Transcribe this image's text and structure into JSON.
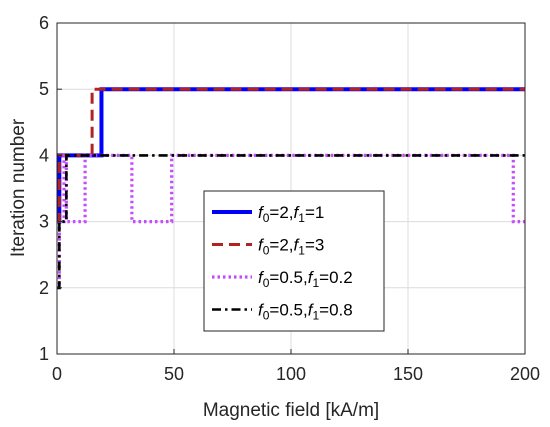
{
  "chart_data": {
    "type": "line",
    "title": "",
    "xlabel": "Magnetic field [kA/m]",
    "ylabel": "Iteration number",
    "xlim": [
      0,
      200
    ],
    "ylim": [
      1,
      6
    ],
    "xticks": [
      "0",
      "50",
      "100",
      "150",
      "200"
    ],
    "yticks": [
      "1",
      "2",
      "3",
      "4",
      "5",
      "6"
    ],
    "grid": true,
    "legend_position": "inside-center",
    "series": [
      {
        "name_parts": {
          "p1": "f",
          "s1": "0",
          "e1": "=2,",
          "p2": "f",
          "s2": "1",
          "e2": "=1"
        },
        "color": "#0000ff",
        "style": "solid",
        "step": true,
        "points": [
          [
            0,
            3
          ],
          [
            1,
            3
          ],
          [
            1,
            4
          ],
          [
            19,
            4
          ],
          [
            19,
            5
          ],
          [
            200,
            5
          ]
        ]
      },
      {
        "name_parts": {
          "p1": "f",
          "s1": "0",
          "e1": "=2,",
          "p2": "f",
          "s2": "1",
          "e2": "=3"
        },
        "color": "#b22222",
        "style": "dashed",
        "step": true,
        "points": [
          [
            0,
            3
          ],
          [
            1,
            3
          ],
          [
            1,
            4
          ],
          [
            15,
            4
          ],
          [
            15,
            5
          ],
          [
            200,
            5
          ]
        ]
      },
      {
        "name_parts": {
          "p1": "f",
          "s1": "0",
          "e1": "=0.5,",
          "p2": "f",
          "s2": "1",
          "e2": "=0.2"
        },
        "color": "#c64bff",
        "style": "dotted",
        "step": true,
        "points": [
          [
            0,
            2
          ],
          [
            1,
            2
          ],
          [
            1,
            3
          ],
          [
            3,
            3
          ],
          [
            3,
            4
          ],
          [
            4,
            4
          ],
          [
            4,
            3
          ],
          [
            12,
            3
          ],
          [
            12,
            4
          ],
          [
            32,
            4
          ],
          [
            32,
            3
          ],
          [
            49,
            3
          ],
          [
            49,
            4
          ],
          [
            195,
            4
          ],
          [
            195,
            3
          ],
          [
            200,
            3
          ]
        ]
      },
      {
        "name_parts": {
          "p1": "f",
          "s1": "0",
          "e1": "=0.5,",
          "p2": "f",
          "s2": "1",
          "e2": "=0.8"
        },
        "color": "#000000",
        "style": "dashdot",
        "step": true,
        "points": [
          [
            0,
            2
          ],
          [
            1,
            2
          ],
          [
            1,
            3
          ],
          [
            4,
            3
          ],
          [
            4,
            4
          ],
          [
            200,
            4
          ]
        ]
      }
    ]
  }
}
